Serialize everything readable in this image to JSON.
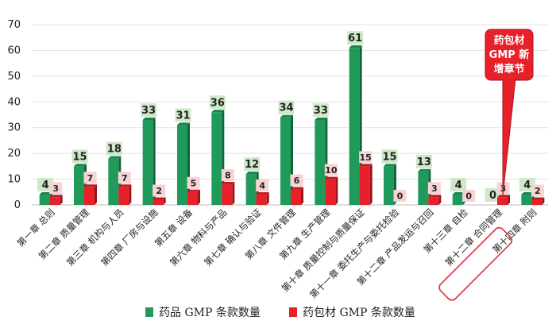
{
  "chart_data": {
    "type": "bar",
    "categories": [
      "第一章 总则",
      "第二章 质量管理",
      "第三章 机构与人员",
      "第四章 厂房与设施",
      "第五章 设备",
      "第六章 物料与产品",
      "第七章 确认与验证",
      "第八章 文件管理",
      "第九章 生产管理",
      "第十章 质量控制与质量保证",
      "第十一章 委托生产与委托检验",
      "第十二章 产品发运与召回",
      "第十三章 自检",
      "第十二章 合同管理",
      "第十四章 附则"
    ],
    "series": [
      {
        "name": "药品 GMP 条款数量",
        "color": "#1f9a5a",
        "labelBg": "#cfe8c9",
        "values": [
          4,
          15,
          18,
          33,
          31,
          36,
          12,
          34,
          33,
          61,
          15,
          13,
          4,
          0,
          4
        ]
      },
      {
        "name": "药包材 GMP 条款数量",
        "color": "#e8202a",
        "labelBg": "#f8d3d3",
        "values": [
          3,
          7,
          7,
          2,
          5,
          8,
          4,
          6,
          10,
          15,
          0,
          3,
          0,
          3,
          2
        ]
      }
    ],
    "ylim": [
      0,
      70
    ],
    "yticks": [
      0,
      10,
      20,
      30,
      40,
      50,
      60,
      70
    ],
    "legend_position": "bottom",
    "callout": {
      "text_lines": [
        "药包材",
        "GMP 新",
        "增章节"
      ],
      "target_index": 13
    },
    "highlight_index": 13
  }
}
